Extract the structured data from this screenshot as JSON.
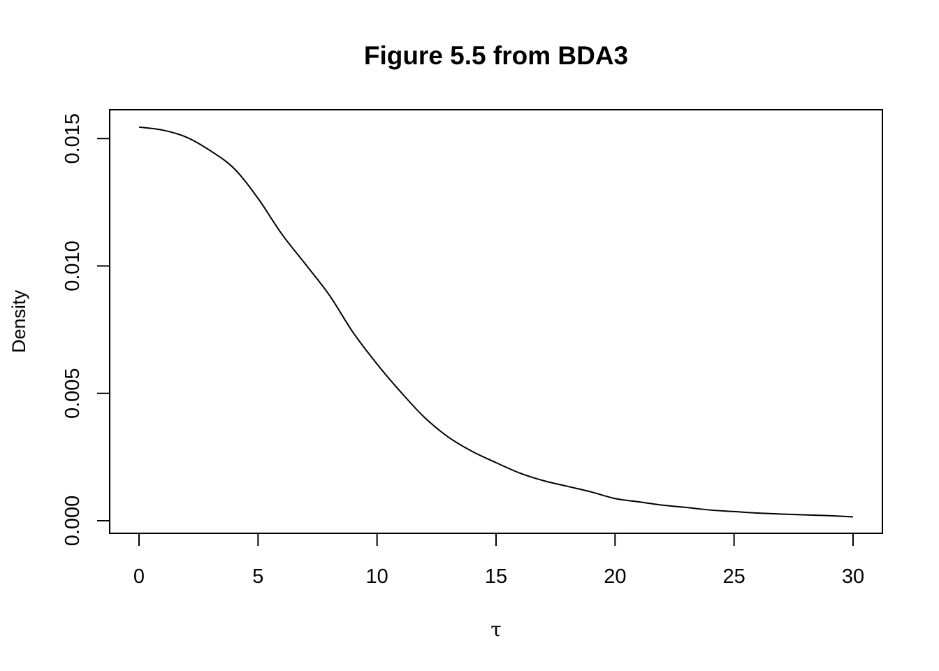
{
  "chart_data": {
    "type": "line",
    "title": "Figure 5.5 from BDA3",
    "xlabel": "τ",
    "ylabel": "Density",
    "xlim": [
      0,
      30
    ],
    "ylim": [
      0,
      0.0155
    ],
    "grid": false,
    "legend": "none",
    "line_color": "#000000",
    "x_ticks": [
      0,
      5,
      10,
      15,
      20,
      25,
      30
    ],
    "x_tick_labels": [
      "0",
      "5",
      "10",
      "15",
      "20",
      "25",
      "30"
    ],
    "y_ticks": [
      0,
      0.005,
      0.01,
      0.015
    ],
    "y_tick_labels": [
      "0.000",
      "0.005",
      "0.010",
      "0.015"
    ],
    "series": [
      {
        "x": [
          0,
          1,
          2,
          3,
          4,
          5,
          6,
          7,
          8,
          9,
          10,
          11,
          12,
          13,
          14,
          15,
          16,
          17,
          18,
          19,
          20,
          21,
          22,
          23,
          24,
          25,
          26,
          27,
          28,
          29,
          30
        ],
        "y": [
          0.01545,
          0.01533,
          0.01505,
          0.01452,
          0.01382,
          0.01265,
          0.01125,
          0.01006,
          0.00885,
          0.00738,
          0.00615,
          0.00505,
          0.00405,
          0.00328,
          0.00272,
          0.00228,
          0.00187,
          0.00157,
          0.00135,
          0.00113,
          0.00087,
          0.00074,
          0.00061,
          0.00052,
          0.00042,
          0.00036,
          0.0003,
          0.00026,
          0.00023,
          0.0002,
          0.00015
        ]
      }
    ]
  }
}
